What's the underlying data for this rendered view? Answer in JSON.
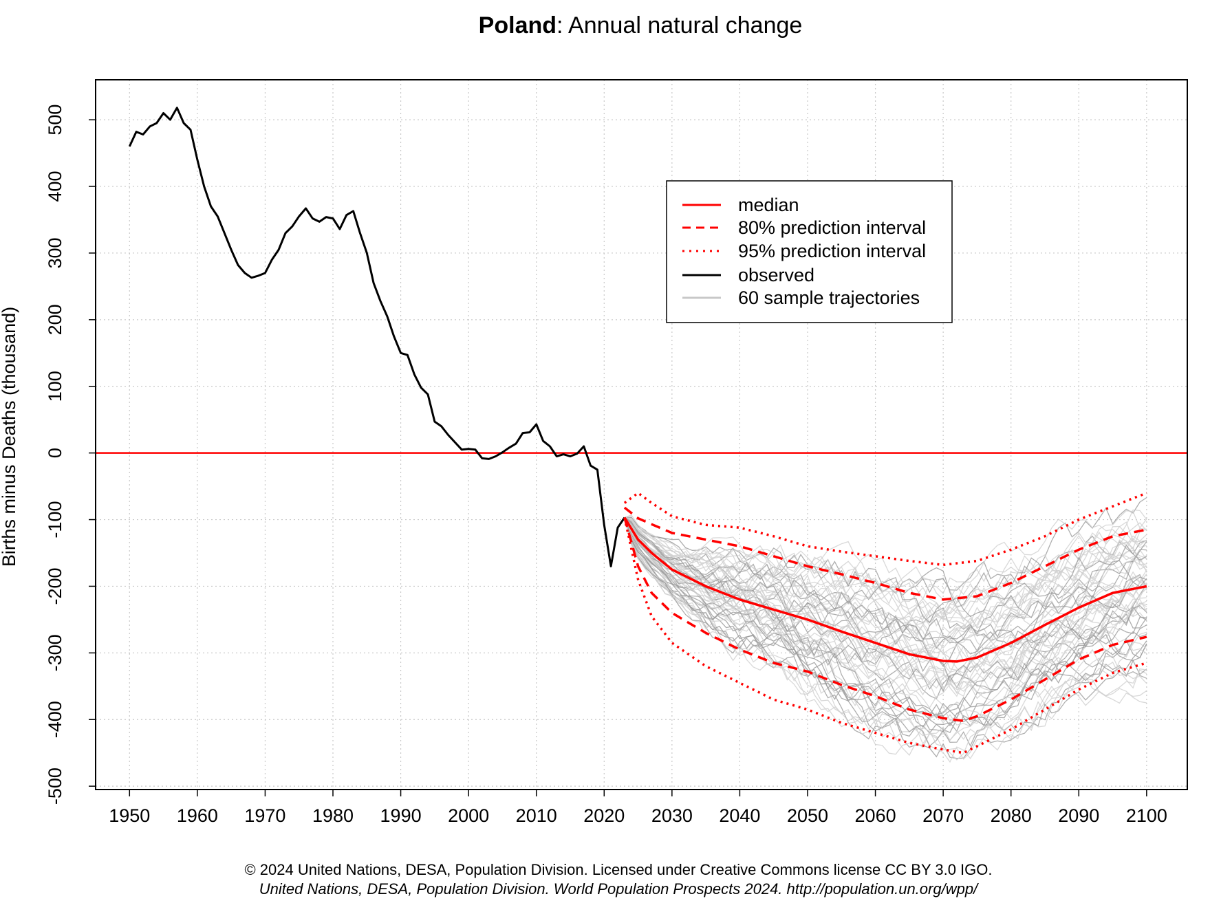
{
  "title": {
    "country": "Poland",
    "rest": ": Annual natural change"
  },
  "credits": {
    "line1": "© 2024 United Nations, DESA, Population Division. Licensed under Creative Commons license CC BY 3.0 IGO.",
    "line2": "United Nations, DESA, Population Division. World Population Prospects 2024. http://population.un.org/wpp/"
  },
  "colors": {
    "median": "#ff0000",
    "interval": "#ff0000",
    "observed": "#000000",
    "samples": "#c8c8c8",
    "grid": "#c8c8c8",
    "zero_line": "#ff0000"
  },
  "legend": [
    {
      "label": "median",
      "style": "solid-red"
    },
    {
      "label": "80% prediction interval",
      "style": "dashed-red"
    },
    {
      "label": "95% prediction interval",
      "style": "dotted-red"
    },
    {
      "label": "observed",
      "style": "solid-black"
    },
    {
      "label": "60 sample trajectories",
      "style": "solid-grey"
    }
  ],
  "chart_data": {
    "type": "line",
    "title": "Poland: Annual natural change",
    "xlabel": "",
    "ylabel": "Births minus Deaths (thousand)",
    "xlim": [
      1945,
      2106
    ],
    "ylim": [
      -505,
      560
    ],
    "x_ticks": [
      1950,
      1960,
      1970,
      1980,
      1990,
      2000,
      2010,
      2020,
      2030,
      2040,
      2050,
      2060,
      2070,
      2080,
      2090,
      2100
    ],
    "y_ticks": [
      -500,
      -400,
      -300,
      -200,
      -100,
      0,
      100,
      200,
      300,
      400,
      500
    ],
    "reference_line": 0,
    "grid": true,
    "legend_position": "top-right",
    "sample_count": 60,
    "series": [
      {
        "name": "observed",
        "x": [
          1950,
          1951,
          1952,
          1953,
          1954,
          1955,
          1956,
          1957,
          1958,
          1959,
          1960,
          1961,
          1962,
          1963,
          1964,
          1965,
          1966,
          1967,
          1968,
          1969,
          1970,
          1971,
          1972,
          1973,
          1974,
          1975,
          1976,
          1977,
          1978,
          1979,
          1980,
          1981,
          1982,
          1983,
          1984,
          1985,
          1986,
          1987,
          1988,
          1989,
          1990,
          1991,
          1992,
          1993,
          1994,
          1995,
          1996,
          1997,
          1998,
          1999,
          2000,
          2001,
          2002,
          2003,
          2004,
          2005,
          2006,
          2007,
          2008,
          2009,
          2010,
          2011,
          2012,
          2013,
          2014,
          2015,
          2016,
          2017,
          2018,
          2019,
          2020,
          2021,
          2022,
          2023
        ],
        "values": [
          460,
          482,
          478,
          490,
          495,
          510,
          500,
          518,
          495,
          485,
          440,
          400,
          370,
          355,
          330,
          305,
          282,
          270,
          263,
          266,
          270,
          290,
          305,
          330,
          340,
          355,
          367,
          352,
          347,
          354,
          352,
          336,
          357,
          363,
          330,
          300,
          255,
          228,
          205,
          175,
          150,
          147,
          118,
          98,
          88,
          47,
          40,
          27,
          16,
          5,
          6,
          5,
          -8,
          -9,
          -5,
          1,
          8,
          14,
          30,
          31,
          43,
          18,
          10,
          -5,
          -2,
          -5,
          -1,
          10,
          -19,
          -25,
          -108,
          -170,
          -112,
          -97
        ]
      },
      {
        "name": "median",
        "x": [
          2023,
          2025,
          2027,
          2030,
          2035,
          2040,
          2045,
          2050,
          2055,
          2060,
          2065,
          2070,
          2072,
          2075,
          2080,
          2085,
          2090,
          2095,
          2100
        ],
        "values": [
          -97,
          -130,
          -150,
          -175,
          -200,
          -220,
          -235,
          -250,
          -268,
          -285,
          -302,
          -312,
          -313,
          -307,
          -285,
          -258,
          -232,
          -210,
          -200
        ]
      },
      {
        "name": "80% upper",
        "x": [
          2023,
          2025,
          2027,
          2030,
          2035,
          2040,
          2045,
          2050,
          2055,
          2060,
          2065,
          2070,
          2075,
          2080,
          2085,
          2090,
          2095,
          2100
        ],
        "values": [
          -82,
          -98,
          -107,
          -120,
          -130,
          -140,
          -155,
          -170,
          -182,
          -195,
          -210,
          -220,
          -215,
          -195,
          -170,
          -145,
          -125,
          -115
        ]
      },
      {
        "name": "80% lower",
        "x": [
          2023,
          2025,
          2027,
          2030,
          2035,
          2040,
          2045,
          2050,
          2055,
          2060,
          2065,
          2070,
          2073,
          2075,
          2080,
          2085,
          2090,
          2095,
          2100
        ],
        "values": [
          -97,
          -170,
          -210,
          -240,
          -270,
          -295,
          -315,
          -328,
          -348,
          -365,
          -385,
          -398,
          -402,
          -395,
          -370,
          -340,
          -310,
          -288,
          -276
        ]
      },
      {
        "name": "95% upper",
        "x": [
          2023,
          2025,
          2027,
          2030,
          2035,
          2040,
          2045,
          2050,
          2055,
          2060,
          2065,
          2070,
          2075,
          2080,
          2085,
          2090,
          2095,
          2100
        ],
        "values": [
          -75,
          -60,
          -75,
          -95,
          -108,
          -112,
          -125,
          -140,
          -148,
          -155,
          -162,
          -168,
          -162,
          -145,
          -125,
          -100,
          -80,
          -60
        ]
      },
      {
        "name": "95% lower",
        "x": [
          2023,
          2025,
          2027,
          2030,
          2035,
          2040,
          2045,
          2050,
          2055,
          2060,
          2065,
          2070,
          2073,
          2075,
          2080,
          2085,
          2090,
          2095,
          2100
        ],
        "values": [
          -97,
          -190,
          -245,
          -285,
          -320,
          -345,
          -370,
          -385,
          -405,
          -420,
          -435,
          -445,
          -450,
          -440,
          -415,
          -385,
          -355,
          -330,
          -315
        ]
      }
    ]
  }
}
